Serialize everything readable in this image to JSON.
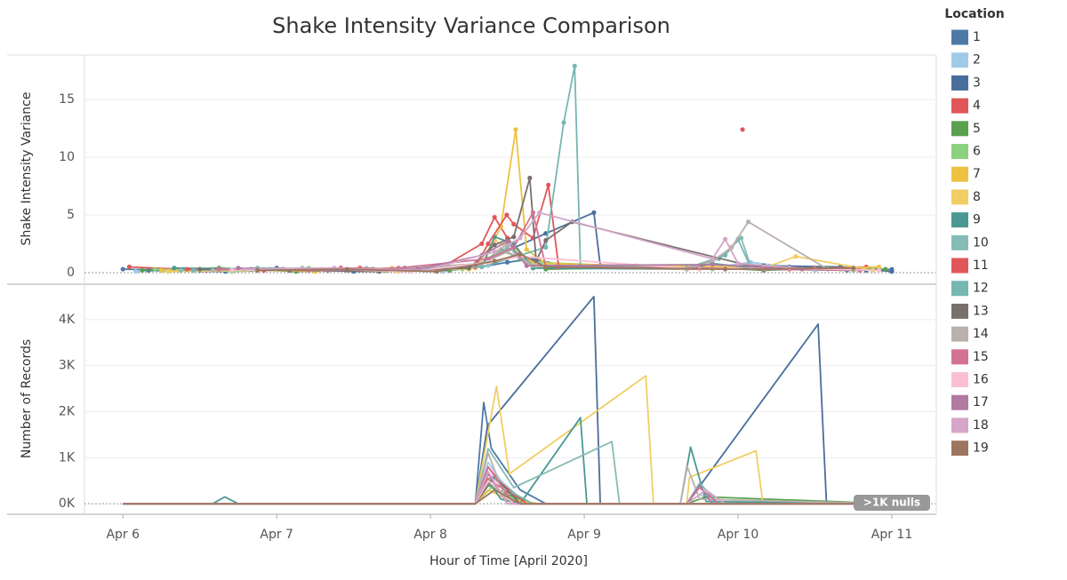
{
  "chart_data": [
    {
      "type": "line",
      "title": "Shake Intensity Variance Comparison",
      "y_label": "Shake Intensity Variance",
      "legend_title": "Location",
      "legend_position": "right",
      "markers": true,
      "xlim": [
        -6,
        126.8
      ],
      "ylim": [
        -0.85,
        18.85
      ],
      "yticks": [
        0,
        5,
        10,
        15
      ],
      "grid": true,
      "series": [
        {
          "name": "1",
          "color": "#4e79a7",
          "x": [
            0,
            12,
            24,
            36,
            48,
            56,
            60,
            64,
            68,
            88,
            96,
            104,
            116,
            120
          ],
          "values": [
            0.3,
            0.2,
            0.4,
            0.1,
            0.3,
            0.5,
            0.9,
            1.2,
            0.7,
            0.4,
            0.6,
            0.5,
            0.2,
            0.3
          ]
        },
        {
          "name": "2",
          "color": "#a0cbe8",
          "x": [
            2,
            14,
            26,
            38,
            50,
            57,
            61,
            65,
            90,
            98,
            108,
            118
          ],
          "values": [
            0.1,
            0.3,
            0.2,
            0.4,
            0.1,
            0.6,
            1.5,
            0.8,
            0.3,
            0.9,
            0.2,
            0.4
          ]
        },
        {
          "name": "3",
          "color": "#4a6e9c",
          "x": [
            4,
            16,
            28,
            40,
            52,
            55,
            60,
            66,
            73.5,
            74.5,
            88,
            100,
            112,
            120
          ],
          "values": [
            0.2,
            0.1,
            0.3,
            0.2,
            0.4,
            0.5,
            1.9,
            3.4,
            5.2,
            0.6,
            0.5,
            0.6,
            0.5,
            0.1
          ]
        },
        {
          "name": "4",
          "color": "#e15759",
          "x": [
            1,
            13,
            25,
            37,
            49,
            56,
            58,
            60,
            63,
            66,
            90,
            94,
            96.7,
            99,
            104,
            116
          ],
          "values": [
            0.5,
            0.2,
            0.3,
            0.4,
            0.2,
            2.5,
            4.8,
            3,
            1,
            0.4,
            0.4,
            null,
            12.4,
            null,
            0.3,
            0.5
          ]
        },
        {
          "name": "5",
          "color": "#59a14f",
          "x": [
            3,
            15,
            27,
            39,
            51,
            56,
            59,
            62,
            66,
            90,
            100,
            110,
            119
          ],
          "values": [
            0.2,
            0.4,
            0.1,
            0.3,
            0.2,
            0.8,
            2,
            1.2,
            0.3,
            0.5,
            0.2,
            0.4,
            0.3
          ]
        },
        {
          "name": "6",
          "color": "#8cd17d",
          "x": [
            5,
            17,
            29,
            41,
            53,
            57,
            60,
            64,
            92,
            102,
            114
          ],
          "values": [
            0.3,
            0.1,
            0.4,
            0.2,
            0.3,
            1,
            2.6,
            0.9,
            0.3,
            0.4,
            0.2
          ]
        },
        {
          "name": "7",
          "color": "#edc240",
          "x": [
            6,
            18,
            30,
            42,
            54,
            56,
            59,
            61.3,
            63,
            66,
            80,
            94,
            106,
            118
          ],
          "values": [
            0.2,
            0.3,
            0.1,
            0.4,
            0.3,
            0.6,
            4,
            12.4,
            2,
            0.8,
            0.6,
            0.4,
            0.3,
            0.5
          ]
        },
        {
          "name": "8",
          "color": "#f1ce63",
          "x": [
            7,
            19,
            31,
            43,
            55,
            58,
            62,
            65,
            90,
            100,
            105,
            117
          ],
          "values": [
            0.1,
            0.2,
            0.3,
            0.1,
            0.4,
            2.8,
            1.6,
            0.5,
            0.6,
            0.4,
            1.4,
            0.2
          ]
        },
        {
          "name": "9",
          "color": "#499894",
          "x": [
            8,
            20,
            32,
            44,
            56,
            58,
            61,
            64,
            88,
            92,
            100,
            113
          ],
          "values": [
            0.4,
            0.3,
            0.2,
            0.4,
            0.5,
            3.1,
            2.5,
            0.4,
            0.3,
            0.8,
            0.3,
            0.2
          ]
        },
        {
          "name": "10",
          "color": "#86bcb6",
          "x": [
            9,
            21,
            33,
            45,
            56,
            60,
            64,
            88,
            93,
            96.5,
            98,
            110
          ],
          "values": [
            0.2,
            0.4,
            0.3,
            0.2,
            0.7,
            2.2,
            0.6,
            0.4,
            1.2,
            3,
            0.5,
            0.3
          ]
        },
        {
          "name": "11",
          "color": "#e15759",
          "x": [
            10,
            22,
            34,
            46,
            55,
            57,
            59.9,
            61,
            64,
            66.4,
            68,
            90,
            108
          ],
          "values": [
            0.3,
            0.2,
            0.4,
            0.3,
            0.5,
            2.5,
            5,
            4.2,
            3,
            7.6,
            0.5,
            0.3,
            0.4
          ]
        },
        {
          "name": "12",
          "color": "#76b7b2",
          "x": [
            11,
            23,
            35,
            47,
            56,
            62,
            66,
            68.8,
            70.5,
            71.4,
            88,
            94,
            96,
            98,
            112
          ],
          "values": [
            0.2,
            0.3,
            0.2,
            0.4,
            0.5,
            1.5,
            2.2,
            13,
            17.9,
            0.6,
            0.4,
            1.5,
            2.9,
            0.4,
            0.3
          ]
        },
        {
          "name": "13",
          "color": "#79706e",
          "x": [
            12,
            26,
            40,
            54,
            58,
            61,
            63.5,
            64.5,
            66,
            70.1,
            100
          ],
          "values": [
            0.3,
            0.2,
            0.1,
            0.4,
            2.4,
            3.1,
            8.2,
            1,
            2.8,
            4.4,
            0.3
          ]
        },
        {
          "name": "14",
          "color": "#bab0ac",
          "x": [
            14,
            28,
            42,
            56,
            60,
            64,
            88,
            92,
            95,
            97.6,
            110
          ],
          "values": [
            0.2,
            0.4,
            0.3,
            0.8,
            1.8,
            0.6,
            0.3,
            1,
            2.2,
            4.4,
            0.3
          ]
        },
        {
          "name": "15",
          "color": "#d37295",
          "x": [
            15,
            29,
            43,
            57,
            61,
            64,
            66,
            90,
            100,
            115
          ],
          "values": [
            0.3,
            0.2,
            0.4,
            1.2,
            2.2,
            5.2,
            0.5,
            0.4,
            0.3,
            0.2
          ]
        },
        {
          "name": "16",
          "color": "#fabfd2",
          "x": [
            17,
            31,
            45,
            57,
            62,
            90,
            104,
            118
          ],
          "values": [
            0.2,
            0.3,
            0.1,
            0.9,
            1.4,
            0.3,
            0.4,
            0.2
          ]
        },
        {
          "name": "17",
          "color": "#b07aa1",
          "x": [
            18,
            32,
            46,
            56,
            60,
            63,
            92,
            106
          ],
          "values": [
            0.4,
            0.2,
            0.3,
            1.5,
            2.7,
            0.6,
            0.7,
            0.3
          ]
        },
        {
          "name": "18",
          "color": "#d4a6c8",
          "x": [
            19,
            33,
            47,
            58,
            62,
            65,
            92,
            94,
            96,
            108
          ],
          "values": [
            0.3,
            0.4,
            0.2,
            1.8,
            3,
            5.2,
            1.2,
            2.9,
            0.8,
            0.3
          ]
        },
        {
          "name": "19",
          "color": "#9d7660",
          "x": [
            21,
            35,
            49,
            58,
            62,
            66,
            94,
            114
          ],
          "values": [
            0.2,
            0.3,
            0.1,
            1,
            1.6,
            0.5,
            0.3,
            0.4
          ]
        }
      ]
    },
    {
      "type": "line",
      "y_label": "Number of Records",
      "x_label": "Hour of Time [April 2020]",
      "annotation": ">1K nulls",
      "markers": false,
      "xlim": [
        -6,
        126.8
      ],
      "ylim": [
        -190,
        4730
      ],
      "xticks": [
        {
          "value": 0,
          "label": "Apr 6"
        },
        {
          "value": 24,
          "label": "Apr 7"
        },
        {
          "value": 48,
          "label": "Apr 8"
        },
        {
          "value": 72,
          "label": "Apr 9"
        },
        {
          "value": 96,
          "label": "Apr 10"
        },
        {
          "value": 120,
          "label": "Apr 11"
        }
      ],
      "yticks": [
        {
          "value": 0,
          "label": "0K"
        },
        {
          "value": 1000,
          "label": "1K"
        },
        {
          "value": 2000,
          "label": "2K"
        },
        {
          "value": 3000,
          "label": "3K"
        },
        {
          "value": 4000,
          "label": "4K"
        }
      ],
      "grid": true,
      "series": [
        {
          "color": "#4e79a7",
          "x": [
            0,
            55,
            56.3,
            57.5,
            62,
            66,
            120
          ],
          "values": [
            0,
            0,
            2200,
            1200,
            300,
            0,
            0
          ]
        },
        {
          "color": "#a0cbe8",
          "x": [
            0,
            55,
            57,
            59,
            63,
            88,
            90,
            93,
            120
          ],
          "values": [
            0,
            0,
            900,
            500,
            0,
            0,
            200,
            0,
            0
          ]
        },
        {
          "color": "#4a6e9c",
          "x": [
            0,
            55,
            56.9,
            73.5,
            74.5,
            88,
            108.5,
            109.8,
            120
          ],
          "values": [
            0,
            0,
            1700,
            4500,
            0,
            0,
            3900,
            0,
            0
          ]
        },
        {
          "color": "#e15759",
          "x": [
            0,
            55,
            57,
            60,
            64,
            120
          ],
          "values": [
            0,
            0,
            550,
            250,
            0,
            0
          ]
        },
        {
          "color": "#59a14f",
          "x": [
            0,
            55,
            57,
            60,
            64,
            88,
            91,
            120
          ],
          "values": [
            0,
            0,
            400,
            200,
            0,
            0,
            150,
            0
          ]
        },
        {
          "color": "#8cd17d",
          "x": [
            0,
            55,
            57.5,
            60,
            64,
            120
          ],
          "values": [
            0,
            0,
            350,
            150,
            0,
            0
          ]
        },
        {
          "color": "#edc240",
          "x": [
            0,
            55,
            57,
            60,
            65,
            120
          ],
          "values": [
            0,
            0,
            300,
            100,
            0,
            0
          ]
        },
        {
          "color": "#f1ce63",
          "x": [
            0,
            55,
            58.3,
            60.3,
            81.6,
            82.8,
            88,
            88.4,
            98.8,
            99.9,
            120
          ],
          "values": [
            0,
            0,
            2550,
            650,
            2780,
            0,
            0,
            570,
            1150,
            0,
            0
          ]
        },
        {
          "color": "#499894",
          "x": [
            0,
            14,
            15.9,
            18,
            55,
            57,
            59,
            62,
            71.4,
            72.4,
            87,
            88.6,
            91,
            120
          ],
          "values": [
            0,
            0,
            150,
            0,
            0,
            500,
            100,
            0,
            1870,
            0,
            0,
            1230,
            50,
            0
          ]
        },
        {
          "color": "#86bcb6",
          "x": [
            0,
            55,
            57,
            61,
            76.3,
            77.5,
            120
          ],
          "values": [
            0,
            0,
            1200,
            350,
            1350,
            0,
            0
          ]
        },
        {
          "color": "#e15759",
          "x": [
            0,
            55,
            57,
            59,
            63,
            120
          ],
          "values": [
            0,
            0,
            800,
            450,
            0,
            0
          ]
        },
        {
          "color": "#76b7b2",
          "x": [
            0,
            55,
            57.5,
            60,
            64,
            88,
            90,
            93,
            120
          ],
          "values": [
            0,
            0,
            600,
            300,
            0,
            0,
            450,
            0,
            0
          ]
        },
        {
          "color": "#79706e",
          "x": [
            0,
            55,
            58,
            62,
            120
          ],
          "values": [
            0,
            0,
            600,
            0,
            0
          ]
        },
        {
          "color": "#bab0ac",
          "x": [
            0,
            55,
            57,
            60,
            87,
            88,
            90,
            120
          ],
          "values": [
            0,
            0,
            1100,
            0,
            0,
            830,
            100,
            0
          ]
        },
        {
          "color": "#d37295",
          "x": [
            0,
            55,
            57,
            61,
            88,
            90,
            93,
            120
          ],
          "values": [
            0,
            0,
            800,
            0,
            0,
            350,
            0,
            0
          ]
        },
        {
          "color": "#fabfd2",
          "x": [
            0,
            55,
            57,
            61,
            120
          ],
          "values": [
            0,
            0,
            500,
            0,
            0
          ]
        },
        {
          "color": "#b07aa1",
          "x": [
            0,
            55,
            57,
            60,
            88,
            90,
            92,
            120
          ],
          "values": [
            0,
            0,
            650,
            0,
            0,
            400,
            0,
            0
          ]
        },
        {
          "color": "#d4a6c8",
          "x": [
            0,
            55,
            57,
            60,
            88,
            91,
            94,
            120
          ],
          "values": [
            0,
            0,
            700,
            0,
            0,
            300,
            0,
            0
          ]
        },
        {
          "color": "#9d7660",
          "x": [
            0,
            55,
            58,
            62,
            120
          ],
          "values": [
            0,
            0,
            300,
            0,
            0
          ]
        }
      ]
    }
  ]
}
